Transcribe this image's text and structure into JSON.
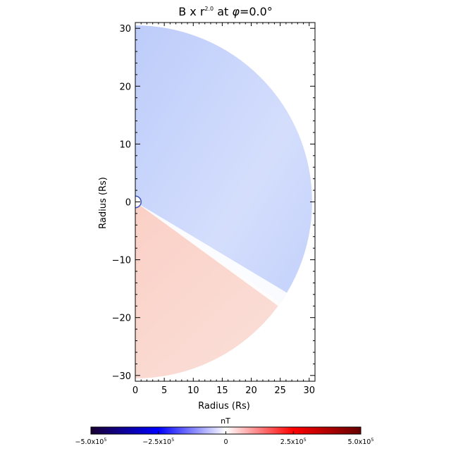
{
  "chart_data": {
    "type": "heatmap",
    "title": {
      "prefix": "B",
      "times": " x r",
      "exponent": "2.0",
      "at": " at ",
      "phi": "φ",
      "angle": "=0.0°"
    },
    "xlabel": "Radius (Rs)",
    "ylabel": "Radius (Rs)",
    "xlim": [
      0,
      31
    ],
    "ylim": [
      -31,
      31
    ],
    "x_ticks": [
      0,
      5,
      10,
      15,
      20,
      25,
      30
    ],
    "x_tick_labels": [
      "0",
      "5",
      "10",
      "15",
      "20",
      "25",
      "30"
    ],
    "y_ticks": [
      30,
      20,
      10,
      0,
      -10,
      -20,
      -30
    ],
    "y_tick_labels": [
      "30",
      "20",
      "10",
      "0",
      "−10",
      "−20",
      "−30"
    ],
    "domain": {
      "shape": "half-disk (right half)",
      "outer_radius": 30.5,
      "inner_radius": 1.0
    },
    "field_pattern": {
      "current_sheet_angle_deg": -35,
      "north_sector_value": -100000.0,
      "south_sector_value": 60000.0,
      "description": "negative (blue) above the tilted current sheet, positive (red) below"
    },
    "colorbar": {
      "label": "nT",
      "min": -500000.0,
      "max": 500000.0,
      "ticks": [
        -500000.0,
        -250000.0,
        0,
        250000.0,
        500000.0
      ],
      "tick_labels": [
        {
          "mantissa": "−5.0x10",
          "exp": "5"
        },
        {
          "mantissa": "−2.5x10",
          "exp": "5"
        },
        {
          "mantissa": "0",
          "exp": ""
        },
        {
          "mantissa": "2.5x10",
          "exp": "5"
        },
        {
          "mantissa": "5.0x10",
          "exp": "5"
        }
      ],
      "colormap": [
        "#1a0033",
        "#0000ff",
        "#ffffff",
        "#ff0000",
        "#660000"
      ]
    },
    "colors": {
      "north": "#bccbfa",
      "north_light": "#d4defc",
      "south": "#fbd0c6",
      "south_light": "#f9e3dd"
    }
  }
}
